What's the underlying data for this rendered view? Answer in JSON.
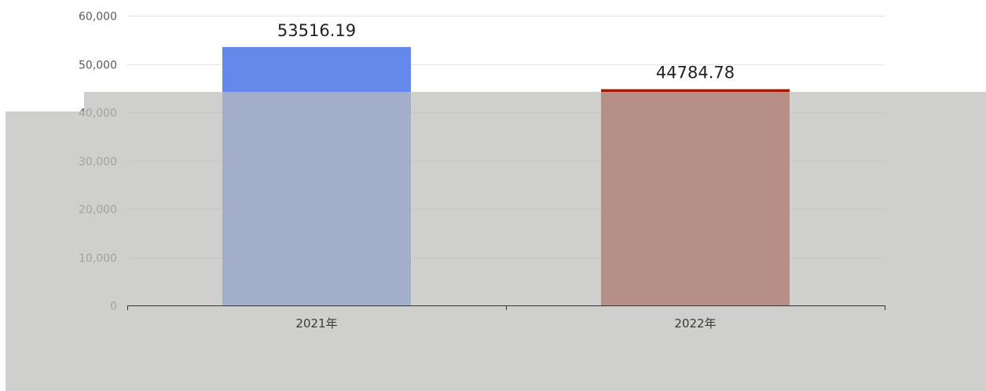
{
  "chart_data": {
    "type": "bar",
    "categories": [
      "2021年",
      "2022年"
    ],
    "values": [
      53516.19,
      44784.78
    ],
    "data_labels": [
      "53516.19",
      "44784.78"
    ],
    "ylim": [
      0,
      60000
    ],
    "yticks": [
      0,
      10000,
      20000,
      30000,
      40000,
      50000,
      60000
    ],
    "ytick_labels": [
      "0",
      "10,000",
      "20,000",
      "30,000",
      "40,000",
      "50,000",
      "60,000"
    ],
    "grid": true,
    "colors": [
      "#6389eb",
      "#a61b00"
    ]
  },
  "overlay": {
    "color": "#bcbcbb"
  }
}
